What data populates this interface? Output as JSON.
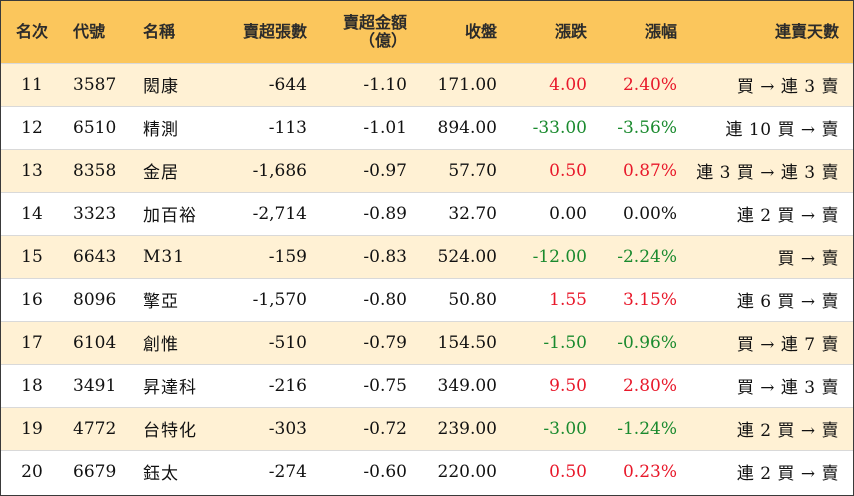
{
  "header": {
    "rank": "名次",
    "code": "代號",
    "name": "名稱",
    "sell_lots": "賣超張數",
    "sell_amount_line1": "賣超金額",
    "sell_amount_line2": "（億）",
    "close": "收盤",
    "change": "漲跌",
    "change_pct": "漲幅",
    "streak": "連賣天數"
  },
  "colors": {
    "header_bg": "#fbc65c",
    "row_shade": "#fff1d4",
    "up": "#e8182a",
    "down": "#1a8a2e"
  },
  "rows": [
    {
      "rank": "11",
      "code": "3587",
      "name": "閎康",
      "sell_lots": "-644",
      "sell_amount": "-1.10",
      "close": "171.00",
      "change": "4.00",
      "change_pct": "2.40%",
      "dir": "up",
      "streak": "買 → 連 3 賣"
    },
    {
      "rank": "12",
      "code": "6510",
      "name": "精測",
      "sell_lots": "-113",
      "sell_amount": "-1.01",
      "close": "894.00",
      "change": "-33.00",
      "change_pct": "-3.56%",
      "dir": "down",
      "streak": "連 10 買 → 賣"
    },
    {
      "rank": "13",
      "code": "8358",
      "name": "金居",
      "sell_lots": "-1,686",
      "sell_amount": "-0.97",
      "close": "57.70",
      "change": "0.50",
      "change_pct": "0.87%",
      "dir": "up",
      "streak": "連 3 買 → 連 3 賣"
    },
    {
      "rank": "14",
      "code": "3323",
      "name": "加百裕",
      "sell_lots": "-2,714",
      "sell_amount": "-0.89",
      "close": "32.70",
      "change": "0.00",
      "change_pct": "0.00%",
      "dir": "flat",
      "streak": "連 2 買 → 賣"
    },
    {
      "rank": "15",
      "code": "6643",
      "name": "M31",
      "sell_lots": "-159",
      "sell_amount": "-0.83",
      "close": "524.00",
      "change": "-12.00",
      "change_pct": "-2.24%",
      "dir": "down",
      "streak": "買 → 賣"
    },
    {
      "rank": "16",
      "code": "8096",
      "name": "擎亞",
      "sell_lots": "-1,570",
      "sell_amount": "-0.80",
      "close": "50.80",
      "change": "1.55",
      "change_pct": "3.15%",
      "dir": "up",
      "streak": "連 6 買 → 賣"
    },
    {
      "rank": "17",
      "code": "6104",
      "name": "創惟",
      "sell_lots": "-510",
      "sell_amount": "-0.79",
      "close": "154.50",
      "change": "-1.50",
      "change_pct": "-0.96%",
      "dir": "down",
      "streak": "買 → 連 7 賣"
    },
    {
      "rank": "18",
      "code": "3491",
      "name": "昇達科",
      "sell_lots": "-216",
      "sell_amount": "-0.75",
      "close": "349.00",
      "change": "9.50",
      "change_pct": "2.80%",
      "dir": "up",
      "streak": "買 → 連 3 賣"
    },
    {
      "rank": "19",
      "code": "4772",
      "name": "台特化",
      "sell_lots": "-303",
      "sell_amount": "-0.72",
      "close": "239.00",
      "change": "-3.00",
      "change_pct": "-1.24%",
      "dir": "down",
      "streak": "連 2 買 → 賣"
    },
    {
      "rank": "20",
      "code": "6679",
      "name": "鈺太",
      "sell_lots": "-274",
      "sell_amount": "-0.60",
      "close": "220.00",
      "change": "0.50",
      "change_pct": "0.23%",
      "dir": "up",
      "streak": "連 2 買 → 賣"
    }
  ]
}
